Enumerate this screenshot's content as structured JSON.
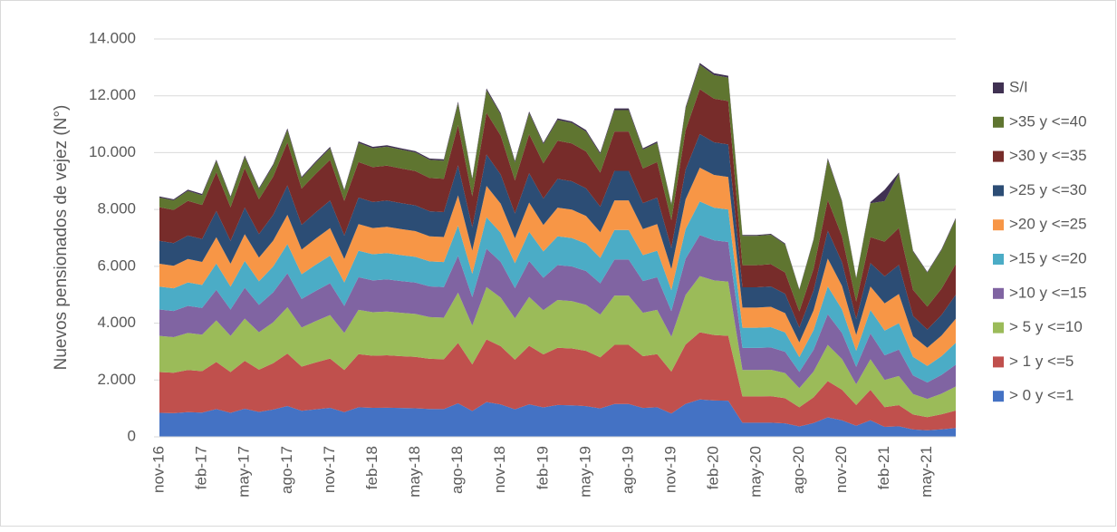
{
  "chart_data": {
    "type": "area",
    "stacked": true,
    "y_label": "Nuevos pensionados de vejez (N°)",
    "categories": [
      "nov-16",
      null,
      null,
      "feb-17",
      null,
      null,
      "may-17",
      null,
      null,
      "ago-17",
      null,
      null,
      "nov-17",
      null,
      null,
      "feb-18",
      null,
      null,
      "may-18",
      null,
      null,
      "ago-18",
      null,
      null,
      "nov-18",
      null,
      null,
      "feb-19",
      null,
      null,
      "may-19",
      null,
      null,
      "ago-19",
      null,
      null,
      "nov-19",
      null,
      null,
      "feb-20",
      null,
      null,
      "may-20",
      null,
      null,
      "ago-20",
      null,
      null,
      "nov-20",
      null,
      null,
      "feb-21",
      null,
      null,
      "may-21",
      null,
      null
    ],
    "ylim": [
      0,
      14000
    ],
    "yticks": [
      0,
      {
        "value": 2000,
        "label": "2.000"
      },
      {
        "value": 4000,
        "label": "4.000"
      },
      {
        "value": 6000,
        "label": "6.000"
      },
      {
        "value": 8000,
        "label": "8.000"
      },
      {
        "value": 10000,
        "label": "10.000"
      },
      {
        "value": 12000,
        "label": "12.000"
      },
      {
        "value": 14000,
        "label": "14.000"
      }
    ],
    "grid": true,
    "legend": "right",
    "series": [
      {
        "name": "> 0 y <=1",
        "color": "#4472c4",
        "values": [
          845,
          835,
          870,
          855,
          975,
          845,
          990,
          875,
          960,
          1085,
          915,
          970,
          1020,
          870,
          1040,
          1020,
          1025,
          1015,
          1005,
          980,
          975,
          1180,
          910,
          1225,
          1140,
          970,
          1145,
          1035,
          1120,
          1110,
          1080,
          1000,
          1155,
          1155,
          1015,
          1040,
          820,
          1160,
          1315,
          1280,
          1270,
          500,
          500,
          500,
          475,
          365,
          485,
          685,
          580,
          390,
          580,
          350,
          370,
          260,
          230,
          265,
          310
        ]
      },
      {
        "name": "> 1 y <=5",
        "color": "#c0504d",
        "values": [
          1435,
          1420,
          1480,
          1455,
          1660,
          1435,
          1685,
          1490,
          1630,
          1845,
          1555,
          1650,
          1735,
          1480,
          1870,
          1835,
          1845,
          1825,
          1810,
          1765,
          1755,
          2125,
          1640,
          2205,
          2050,
          1745,
          2060,
          1865,
          2015,
          2000,
          1945,
          1800,
          2080,
          2080,
          1825,
          1870,
          1475,
          2090,
          2365,
          2305,
          2285,
          925,
          925,
          930,
          885,
          675,
          905,
          1275,
          1080,
          730,
          1075,
          695,
          745,
          525,
          465,
          530,
          615
        ]
      },
      {
        "name": "> 5 y <=10",
        "color": "#9bbb59",
        "values": [
          1270,
          1255,
          1305,
          1285,
          1465,
          1270,
          1485,
          1315,
          1440,
          1630,
          1375,
          1455,
          1530,
          1305,
          1560,
          1530,
          1540,
          1525,
          1510,
          1470,
          1465,
          1770,
          1365,
          1840,
          1710,
          1455,
          1720,
          1555,
          1680,
          1665,
          1620,
          1500,
          1735,
          1735,
          1525,
          1560,
          1230,
          1740,
          1975,
          1920,
          1905,
          925,
          925,
          930,
          885,
          675,
          905,
          1275,
          1080,
          730,
          1075,
          955,
          1025,
          720,
          640,
          725,
          845
        ]
      },
      {
        "name": ">10 y <=15",
        "color": "#8064a2",
        "values": [
          930,
          920,
          955,
          940,
          1075,
          930,
          1090,
          965,
          1055,
          1195,
          1005,
          1065,
          1120,
          955,
          1145,
          1120,
          1130,
          1115,
          1105,
          1080,
          1075,
          1300,
          1000,
          1350,
          1255,
          1065,
          1260,
          1140,
          1230,
          1220,
          1190,
          1100,
          1270,
          1270,
          1115,
          1145,
          900,
          1275,
          1445,
          1410,
          1395,
          780,
          780,
          785,
          750,
          570,
          765,
          1080,
          915,
          615,
          910,
          870,
          930,
          655,
          580,
          660,
          770
        ]
      },
      {
        "name": ">15 y <=20",
        "color": "#4bacc6",
        "values": [
          805,
          795,
          825,
          810,
          925,
          805,
          940,
          830,
          910,
          1030,
          870,
          920,
          970,
          825,
          935,
          920,
          925,
          915,
          905,
          880,
          880,
          1060,
          820,
          1105,
          1025,
          875,
          1030,
          930,
          1010,
          1000,
          970,
          900,
          1040,
          1040,
          915,
          935,
          740,
          1045,
          1185,
          1150,
          1145,
          710,
          710,
          715,
          680,
          520,
          695,
          980,
          830,
          560,
          825,
          870,
          930,
          655,
          580,
          660,
          770
        ]
      },
      {
        "name": ">20 y <=25",
        "color": "#f79646",
        "values": [
          805,
          795,
          825,
          810,
          925,
          805,
          940,
          830,
          910,
          1030,
          870,
          920,
          970,
          825,
          935,
          920,
          925,
          915,
          905,
          880,
          880,
          1060,
          820,
          1105,
          1025,
          875,
          1030,
          930,
          1010,
          1000,
          970,
          900,
          1040,
          1040,
          915,
          935,
          740,
          1045,
          1185,
          1150,
          1145,
          710,
          710,
          715,
          680,
          520,
          695,
          980,
          830,
          560,
          825,
          955,
          1025,
          720,
          640,
          725,
          845
        ]
      },
      {
        "name": ">25 y <=30",
        "color": "#2c4d75",
        "values": [
          805,
          795,
          825,
          810,
          925,
          805,
          940,
          830,
          910,
          1030,
          870,
          920,
          970,
          825,
          935,
          920,
          925,
          915,
          905,
          880,
          880,
          1060,
          820,
          1105,
          1025,
          875,
          1030,
          930,
          1010,
          1000,
          970,
          900,
          1040,
          1040,
          915,
          935,
          740,
          1045,
          1185,
          1150,
          1145,
          710,
          710,
          715,
          680,
          520,
          695,
          980,
          830,
          560,
          825,
          955,
          1025,
          720,
          640,
          725,
          845
        ]
      },
      {
        "name": ">30 y <=35",
        "color": "#772c2a",
        "values": [
          1185,
          1170,
          1220,
          1195,
          1365,
          1185,
          1385,
          1225,
          1345,
          1520,
          1280,
          1360,
          1430,
          1220,
          1250,
          1225,
          1230,
          1220,
          1205,
          1175,
          1170,
          1415,
          1090,
          1470,
          1370,
          1165,
          1375,
          1240,
          1345,
          1330,
          1295,
          1200,
          1385,
          1385,
          1220,
          1250,
          985,
          1390,
          1580,
          1535,
          1525,
          780,
          780,
          785,
          750,
          570,
          765,
          1080,
          915,
          615,
          910,
          1220,
          1300,
          915,
          810,
          925,
          1080
        ]
      },
      {
        "name": ">35 y <=40",
        "color": "#5f7530",
        "values": [
          340,
          335,
          350,
          340,
          390,
          340,
          395,
          350,
          385,
          435,
          365,
          390,
          410,
          350,
          675,
          665,
          665,
          660,
          655,
          635,
          635,
          765,
          590,
          795,
          740,
          630,
          745,
          675,
          730,
          720,
          700,
          650,
          750,
          750,
          660,
          675,
          535,
          755,
          855,
          830,
          825,
          1030,
          1030,
          1035,
          985,
          755,
          1010,
          1420,
          1205,
          810,
          1195,
          1425,
          1905,
          1345,
          1190,
          1355,
          1580
        ]
      },
      {
        "name": "S/I",
        "color": "#403152",
        "values": [
          40,
          40,
          45,
          45,
          50,
          40,
          50,
          45,
          50,
          55,
          45,
          50,
          50,
          45,
          50,
          50,
          50,
          50,
          50,
          50,
          50,
          60,
          45,
          60,
          55,
          50,
          55,
          50,
          55,
          55,
          55,
          50,
          60,
          60,
          50,
          50,
          40,
          60,
          65,
          65,
          65,
          35,
          35,
          35,
          35,
          25,
          35,
          50,
          40,
          30,
          40,
          400,
          45,
          35,
          30,
          35,
          40
        ]
      }
    ]
  }
}
